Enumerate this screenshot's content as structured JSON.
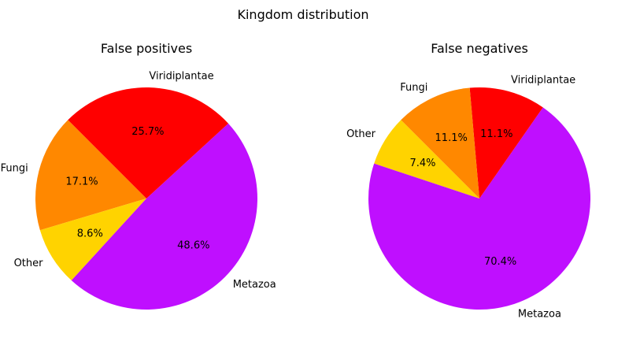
{
  "chart_data": [
    {
      "type": "pie",
      "suptitle": "Kingdom distribution",
      "title": "False positives",
      "start_angle_deg": 135,
      "direction": "counterclockwise",
      "slices": [
        {
          "label": "Fungi",
          "value": 17.1,
          "pct_label": "17.1%",
          "color": "#FF8800"
        },
        {
          "label": "Other",
          "value": 8.6,
          "pct_label": "8.6%",
          "color": "#FFD300"
        },
        {
          "label": "Metazoa",
          "value": 48.6,
          "pct_label": "48.6%",
          "color": "#BF0FFF"
        },
        {
          "label": "Viridiplantae",
          "value": 25.7,
          "pct_label": "25.7%",
          "color": "#FF0000"
        }
      ]
    },
    {
      "type": "pie",
      "title": "False negatives",
      "start_angle_deg": 135,
      "direction": "counterclockwise",
      "slices": [
        {
          "label": "Other",
          "value": 7.4,
          "pct_label": "7.4%",
          "color": "#FFD300"
        },
        {
          "label": "Metazoa",
          "value": 70.4,
          "pct_label": "70.4%",
          "color": "#BF0FFF"
        },
        {
          "label": "Viridiplantae",
          "value": 11.1,
          "pct_label": "11.1%",
          "color": "#FF0000"
        },
        {
          "label": "Fungi",
          "value": 11.1,
          "pct_label": "11.1%",
          "color": "#FF8800"
        }
      ]
    }
  ]
}
